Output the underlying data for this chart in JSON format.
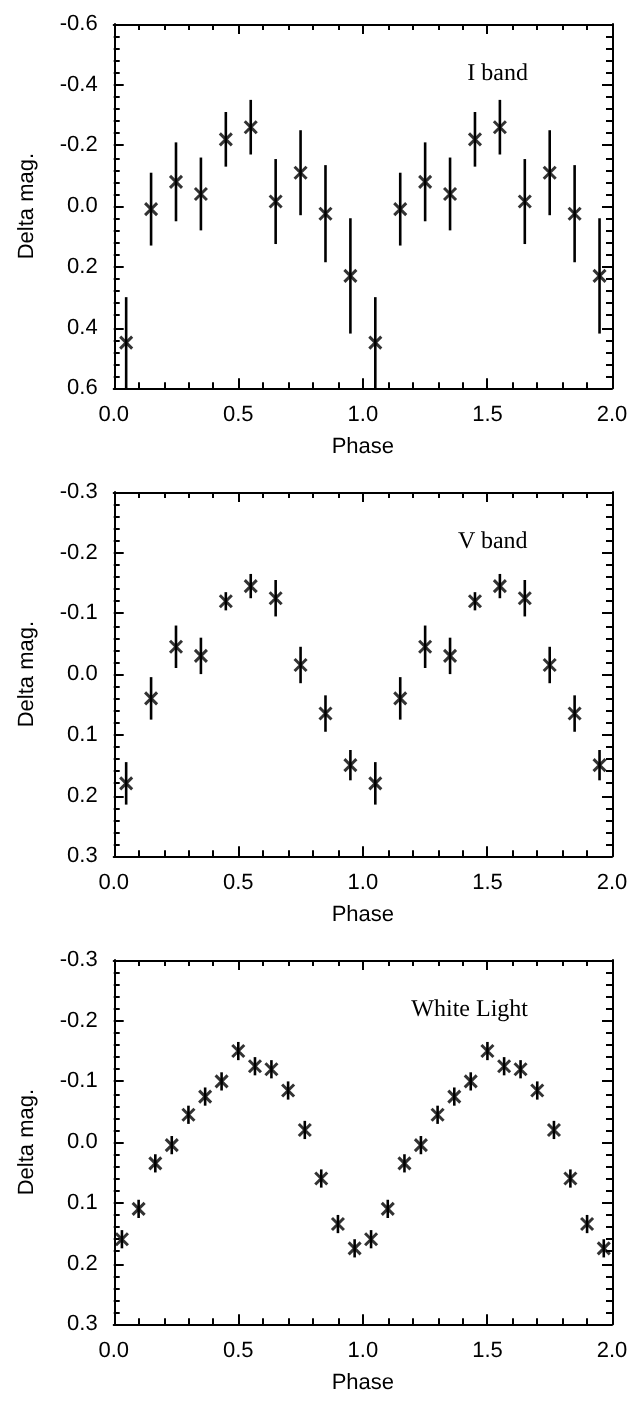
{
  "chart_data": [
    {
      "type": "scatter",
      "xlabel": "Phase",
      "ylabel": "Delta mag.",
      "annotations": [
        "I band"
      ],
      "marker": "cross",
      "grid": false,
      "x": [
        0.05,
        0.15,
        0.25,
        0.35,
        0.45,
        0.55,
        0.65,
        0.75,
        0.85,
        0.95,
        1.05,
        1.15,
        1.25,
        1.35,
        1.45,
        1.55,
        1.65,
        1.75,
        1.85,
        1.95
      ],
      "series": [
        {
          "color": "#000000",
          "values": [
            0.45,
            0.01,
            -0.08,
            -0.04,
            -0.22,
            -0.26,
            -0.015,
            -0.11,
            0.025,
            0.23,
            0.45,
            0.01,
            -0.08,
            -0.04,
            -0.22,
            -0.26,
            -0.015,
            -0.11,
            0.025,
            0.23
          ],
          "errors": [
            0.15,
            0.12,
            0.13,
            0.12,
            0.09,
            0.09,
            0.14,
            0.14,
            0.16,
            0.19,
            0.15,
            0.12,
            0.13,
            0.12,
            0.09,
            0.09,
            0.14,
            0.14,
            0.16,
            0.19
          ]
        }
      ],
      "xlim": [
        0,
        2
      ],
      "xticks": [
        {
          "value": 0,
          "label": "0.0"
        },
        {
          "value": 0.5,
          "label": "0.5"
        },
        {
          "value": 1,
          "label": "1.0"
        },
        {
          "value": 1.5,
          "label": "1.5"
        },
        {
          "value": 2,
          "label": "2.0"
        }
      ],
      "ylim": [
        0.6,
        -0.6
      ],
      "yticks": [
        {
          "value": -0.6,
          "label": "-0.6"
        },
        {
          "value": -0.4,
          "label": "-0.4"
        },
        {
          "value": -0.2,
          "label": "-0.2"
        },
        {
          "value": 0,
          "label": "0.0"
        },
        {
          "value": 0.2,
          "label": "0.2"
        },
        {
          "value": 0.4,
          "label": "0.4"
        },
        {
          "value": 0.6,
          "label": "0.6"
        }
      ]
    },
    {
      "type": "scatter",
      "xlabel": "Phase",
      "ylabel": "Delta mag.",
      "annotations": [
        "V band"
      ],
      "marker": "cross",
      "grid": false,
      "x": [
        0.05,
        0.15,
        0.25,
        0.35,
        0.45,
        0.55,
        0.65,
        0.75,
        0.85,
        0.95,
        1.05,
        1.15,
        1.25,
        1.35,
        1.45,
        1.55,
        1.65,
        1.75,
        1.85,
        1.95
      ],
      "series": [
        {
          "color": "#000000",
          "values": [
            0.18,
            0.04,
            -0.045,
            -0.03,
            -0.12,
            -0.145,
            -0.125,
            -0.015,
            0.065,
            0.15,
            0.18,
            0.04,
            -0.045,
            -0.03,
            -0.12,
            -0.145,
            -0.125,
            -0.015,
            0.065,
            0.15
          ],
          "errors": [
            0.035,
            0.035,
            0.035,
            0.03,
            0.015,
            0.02,
            0.03,
            0.03,
            0.03,
            0.025,
            0.035,
            0.035,
            0.035,
            0.03,
            0.015,
            0.02,
            0.03,
            0.03,
            0.03,
            0.025
          ]
        }
      ],
      "xlim": [
        0,
        2
      ],
      "xticks": [
        {
          "value": 0,
          "label": "0.0"
        },
        {
          "value": 0.5,
          "label": "0.5"
        },
        {
          "value": 1,
          "label": "1.0"
        },
        {
          "value": 1.5,
          "label": "1.5"
        },
        {
          "value": 2,
          "label": "2.0"
        }
      ],
      "ylim": [
        0.3,
        -0.3
      ],
      "yticks": [
        {
          "value": -0.3,
          "label": "-0.3"
        },
        {
          "value": -0.2,
          "label": "-0.2"
        },
        {
          "value": -0.1,
          "label": "-0.1"
        },
        {
          "value": 0,
          "label": "0.0"
        },
        {
          "value": 0.1,
          "label": "0.1"
        },
        {
          "value": 0.2,
          "label": "0.2"
        },
        {
          "value": 0.3,
          "label": "0.3"
        }
      ]
    },
    {
      "type": "scatter",
      "xlabel": "Phase",
      "ylabel": "Delta mag.",
      "annotations": [
        "White Light"
      ],
      "marker": "cross",
      "grid": false,
      "x": [
        0.033,
        0.1,
        0.167,
        0.233,
        0.3,
        0.367,
        0.433,
        0.5,
        0.567,
        0.633,
        0.7,
        0.767,
        0.833,
        0.9,
        0.967,
        1.033,
        1.1,
        1.167,
        1.233,
        1.3,
        1.367,
        1.433,
        1.5,
        1.567,
        1.633,
        1.7,
        1.767,
        1.833,
        1.9,
        1.967
      ],
      "series": [
        {
          "color": "#000000",
          "values": [
            0.16,
            0.11,
            0.035,
            0.005,
            -0.045,
            -0.075,
            -0.1,
            -0.15,
            -0.125,
            -0.12,
            -0.085,
            -0.02,
            0.06,
            0.135,
            0.175,
            0.16,
            0.11,
            0.035,
            0.005,
            -0.045,
            -0.075,
            -0.1,
            -0.15,
            -0.125,
            -0.12,
            -0.085,
            -0.02,
            0.06,
            0.135,
            0.175
          ],
          "errors": [
            0.015,
            0.015,
            0.015,
            0.015,
            0.015,
            0.015,
            0.015,
            0.015,
            0.015,
            0.015,
            0.015,
            0.015,
            0.015,
            0.015,
            0.015,
            0.015,
            0.015,
            0.015,
            0.015,
            0.015,
            0.015,
            0.015,
            0.015,
            0.015,
            0.015,
            0.015,
            0.015,
            0.015,
            0.015,
            0.015
          ]
        }
      ],
      "xlim": [
        0,
        2
      ],
      "xticks": [
        {
          "value": 0,
          "label": "0.0"
        },
        {
          "value": 0.5,
          "label": "0.5"
        },
        {
          "value": 1,
          "label": "1.0"
        },
        {
          "value": 1.5,
          "label": "1.5"
        },
        {
          "value": 2,
          "label": "2.0"
        }
      ],
      "ylim": [
        0.3,
        -0.3
      ],
      "yticks": [
        {
          "value": -0.3,
          "label": "-0.3"
        },
        {
          "value": -0.2,
          "label": "-0.2"
        },
        {
          "value": -0.1,
          "label": "-0.1"
        },
        {
          "value": 0,
          "label": "0.0"
        },
        {
          "value": 0.1,
          "label": "0.1"
        },
        {
          "value": 0.2,
          "label": "0.2"
        },
        {
          "value": 0.3,
          "label": "0.3"
        }
      ]
    }
  ]
}
